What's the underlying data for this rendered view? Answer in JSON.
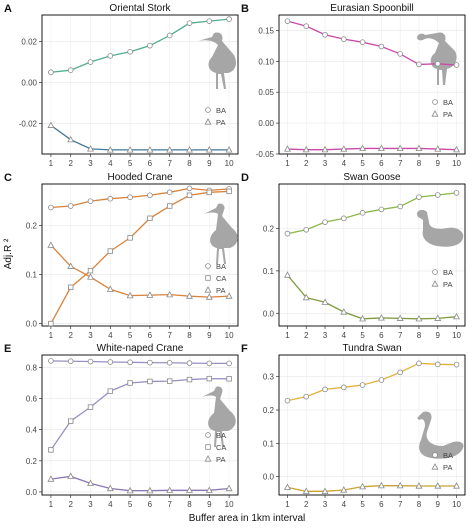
{
  "figure": {
    "ylabel": "Adj.R ²",
    "xlabel": "Buffer area in 1km interval"
  },
  "colors": {
    "BA_green": "#4fae8e",
    "BA_pink": "#c94aa8",
    "BA_orange": "#d9823a",
    "BA_lightgreen": "#89b84a",
    "BA_purple": "#9a90c4",
    "BA_yellow": "#e3b23a",
    "PA_teal": "#3f7a9a",
    "PA_orange": "#d9823a",
    "CA_orange": "#d9823a",
    "PA_violet": "#8a78b4",
    "PA_gold": "#c9a233",
    "PA_olive": "#7f9a3f",
    "marker_fill": "#ffffff",
    "marker_stroke": "#8a8a8a",
    "bird_silhouette": "#a6a6a6",
    "panel_border": "#000000"
  },
  "chart_data": [
    {
      "panel": "A",
      "type": "line",
      "title": "Oriental Stork",
      "x": [
        1,
        2,
        3,
        4,
        5,
        6,
        7,
        8,
        9,
        10
      ],
      "ylim": [
        -0.035,
        0.033
      ],
      "yticks": [
        -0.02,
        0.0,
        0.02
      ],
      "ytick_labels": [
        "-0.02",
        "0.00",
        "0.02"
      ],
      "silhouette": "stork",
      "series": [
        {
          "name": "BA",
          "marker": "circle",
          "color_key": "BA_green",
          "values": [
            0.005,
            0.006,
            0.01,
            0.013,
            0.015,
            0.018,
            0.023,
            0.029,
            0.03,
            0.031
          ]
        },
        {
          "name": "PA",
          "marker": "triangle",
          "color_key": "PA_teal",
          "values": [
            -0.021,
            -0.028,
            -0.0325,
            -0.033,
            -0.033,
            -0.033,
            -0.033,
            -0.033,
            -0.033,
            -0.033
          ]
        }
      ]
    },
    {
      "panel": "B",
      "type": "line",
      "title": "Eurasian Spoonbill",
      "x": [
        1,
        2,
        3,
        4,
        5,
        6,
        7,
        8,
        9,
        10
      ],
      "ylim": [
        -0.05,
        0.175
      ],
      "yticks": [
        -0.05,
        0.0,
        0.05,
        0.1,
        0.15
      ],
      "ytick_labels": [
        "-0.05",
        "0.00",
        "0.05",
        "0.10",
        "0.15"
      ],
      "silhouette": "spoonbill",
      "series": [
        {
          "name": "BA",
          "marker": "circle",
          "color_key": "BA_pink",
          "values": [
            0.165,
            0.157,
            0.143,
            0.136,
            0.131,
            0.124,
            0.112,
            0.095,
            0.096,
            0.094
          ]
        },
        {
          "name": "PA",
          "marker": "triangle",
          "color_key": "BA_pink",
          "values": [
            -0.042,
            -0.043,
            -0.043,
            -0.042,
            -0.041,
            -0.041,
            -0.041,
            -0.041,
            -0.042,
            -0.043
          ]
        }
      ]
    },
    {
      "panel": "C",
      "type": "line",
      "title": "Hooded Crane",
      "x": [
        1,
        2,
        3,
        4,
        5,
        6,
        7,
        8,
        9,
        10
      ],
      "ylim": [
        -0.005,
        0.285
      ],
      "yticks": [
        0.0,
        0.1,
        0.2
      ],
      "ytick_labels": [
        "0.0",
        "0.1",
        "0.2"
      ],
      "silhouette": "crane",
      "series": [
        {
          "name": "BA",
          "marker": "circle",
          "color_key": "BA_orange",
          "values": [
            0.237,
            0.24,
            0.25,
            0.255,
            0.258,
            0.262,
            0.268,
            0.276,
            0.272,
            0.275
          ]
        },
        {
          "name": "CA",
          "marker": "square",
          "color_key": "CA_orange",
          "values": [
            0.0,
            0.074,
            0.108,
            0.148,
            0.175,
            0.215,
            0.24,
            0.262,
            0.268,
            0.27
          ]
        },
        {
          "name": "PA",
          "marker": "triangle",
          "color_key": "PA_orange",
          "values": [
            0.16,
            0.117,
            0.095,
            0.07,
            0.057,
            0.058,
            0.059,
            0.056,
            0.054,
            0.056
          ]
        }
      ]
    },
    {
      "panel": "D",
      "type": "line",
      "title": "Swan Goose",
      "x": [
        1,
        2,
        3,
        4,
        5,
        6,
        7,
        8,
        9,
        10
      ],
      "ylim": [
        -0.03,
        0.305
      ],
      "yticks": [
        0.0,
        0.1,
        0.2
      ],
      "ytick_labels": [
        "0.0",
        "0.1",
        "0.2"
      ],
      "silhouette": "goose",
      "series": [
        {
          "name": "BA",
          "marker": "circle",
          "color_key": "BA_lightgreen",
          "values": [
            0.188,
            0.197,
            0.215,
            0.224,
            0.237,
            0.245,
            0.252,
            0.274,
            0.279,
            0.284
          ]
        },
        {
          "name": "PA",
          "marker": "triangle",
          "color_key": "PA_olive",
          "values": [
            0.09,
            0.037,
            0.026,
            0.003,
            -0.013,
            -0.011,
            -0.012,
            -0.013,
            -0.012,
            -0.008
          ]
        }
      ]
    },
    {
      "panel": "E",
      "type": "line",
      "title": "White-naped Crane",
      "x": [
        1,
        2,
        3,
        4,
        5,
        6,
        7,
        8,
        9,
        10
      ],
      "ylim": [
        -0.02,
        0.88
      ],
      "yticks": [
        0.0,
        0.2,
        0.4,
        0.6,
        0.8
      ],
      "ytick_labels": [
        "0.0",
        "0.2",
        "0.4",
        "0.6",
        "0.8"
      ],
      "silhouette": "crane",
      "series": [
        {
          "name": "BA",
          "marker": "circle",
          "color_key": "BA_purple",
          "values": [
            0.842,
            0.84,
            0.838,
            0.835,
            0.833,
            0.831,
            0.83,
            0.828,
            0.826,
            0.826
          ]
        },
        {
          "name": "CA",
          "marker": "square",
          "color_key": "BA_purple",
          "values": [
            0.27,
            0.455,
            0.545,
            0.648,
            0.7,
            0.71,
            0.712,
            0.722,
            0.728,
            0.727
          ]
        },
        {
          "name": "PA",
          "marker": "triangle",
          "color_key": "PA_violet",
          "values": [
            0.082,
            0.1,
            0.055,
            0.022,
            0.008,
            0.008,
            0.01,
            0.01,
            0.01,
            0.022
          ]
        }
      ]
    },
    {
      "panel": "F",
      "type": "line",
      "title": "Tundra Swan",
      "x": [
        1,
        2,
        3,
        4,
        5,
        6,
        7,
        8,
        9,
        10
      ],
      "ylim": [
        -0.055,
        0.365
      ],
      "yticks": [
        0.0,
        0.1,
        0.2,
        0.3
      ],
      "ytick_labels": [
        "0.0",
        "0.1",
        "0.2",
        "0.3"
      ],
      "silhouette": "swan",
      "series": [
        {
          "name": "BA",
          "marker": "circle",
          "color_key": "BA_yellow",
          "values": [
            0.228,
            0.24,
            0.262,
            0.268,
            0.275,
            0.29,
            0.313,
            0.34,
            0.337,
            0.336
          ]
        },
        {
          "name": "PA",
          "marker": "triangle",
          "color_key": "PA_gold",
          "values": [
            -0.032,
            -0.044,
            -0.044,
            -0.04,
            -0.03,
            -0.027,
            -0.027,
            -0.028,
            -0.028,
            -0.028
          ]
        }
      ]
    }
  ]
}
